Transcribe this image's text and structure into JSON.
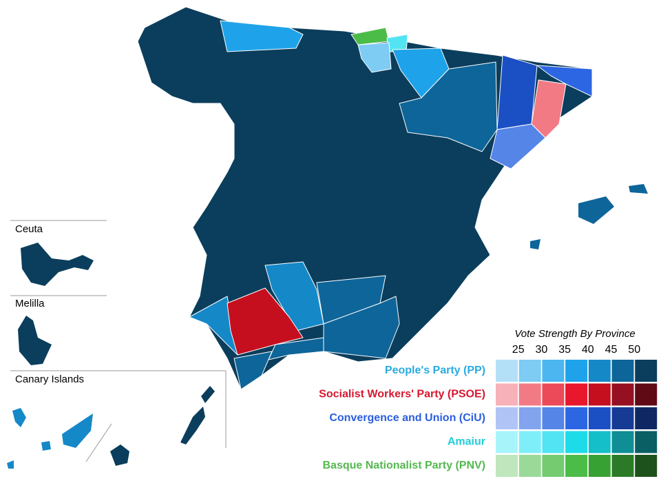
{
  "insets": [
    {
      "label": "Ceuta"
    },
    {
      "label": "Melilla"
    },
    {
      "label": "Canary Islands"
    }
  ],
  "legend": {
    "title": "Vote Strength By Province",
    "scale": [
      25,
      30,
      35,
      40,
      45,
      50
    ],
    "parties": [
      {
        "name": "People's Party (PP)",
        "color": "#29abe2",
        "swatches": [
          "#b3e0f7",
          "#7ecbf4",
          "#4bb6ef",
          "#1ea3ea",
          "#1588c8",
          "#0e6599",
          "#0b3e5c"
        ]
      },
      {
        "name": "Socialist Workers' Party (PSOE)",
        "color": "#d7172f",
        "swatches": [
          "#f7b1b9",
          "#f27a85",
          "#ec4a58",
          "#e8172b",
          "#c50f1f",
          "#951020",
          "#600a15"
        ]
      },
      {
        "name": "Convergence and Union (CiU)",
        "color": "#2a5ee0",
        "swatches": [
          "#b0c4f5",
          "#82a4ee",
          "#5685e8",
          "#2d66e3",
          "#1b4fc4",
          "#163b94",
          "#0f2864"
        ]
      },
      {
        "name": "Amaiur",
        "color": "#21ccd9",
        "swatches": [
          "#a8f4fb",
          "#7eeef8",
          "#52e4f2",
          "#1ddbe9",
          "#14bfc9",
          "#0f8e96",
          "#0a5f64"
        ]
      },
      {
        "name": "Basque Nationalist Party (PNV)",
        "color": "#54b84f",
        "swatches": [
          "#bfe6bd",
          "#9bd998",
          "#74cb70",
          "#4cbc48",
          "#38a134",
          "#2b7a28",
          "#1e521c"
        ]
      }
    ]
  }
}
